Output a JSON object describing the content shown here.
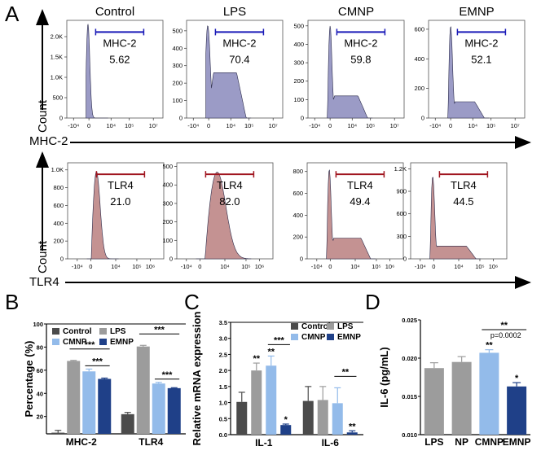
{
  "panels": {
    "A": "A",
    "B": "B",
    "C": "C",
    "D": "D"
  },
  "colors": {
    "Control": "#4b4b4b",
    "LPS": "#9c9c9c",
    "CMNP": "#93bbea",
    "EMNP": "#1f4088",
    "NP": "#9c9c9c",
    "mhc_fill": "#9b9bc6",
    "mhc_gate": "#1a1ab8",
    "tlr_fill": "#c49292",
    "tlr_gate": "#a0141e"
  },
  "chart_data": [
    {
      "type": "histogram",
      "marker": "MHC-2",
      "ylabel": "Count",
      "xlabel": "MHC-2",
      "xticks": [
        "-10⁴",
        "0",
        "10⁴",
        "10⁵",
        "10⁷"
      ],
      "samples": [
        {
          "title": "Control",
          "gate_label": "MHC-2",
          "gate_value": "5.62",
          "yticks": [
            0,
            500,
            1000,
            1500,
            2000
          ],
          "ytick_labels": [
            "0",
            "500",
            "1.0K",
            "1.5K",
            "2.0K"
          ],
          "ymax": 2400,
          "peak": 2300,
          "shoulder": 0
        },
        {
          "title": "LPS",
          "gate_label": "MHC-2",
          "gate_value": "70.4",
          "yticks": [
            0,
            100,
            200,
            300,
            400,
            500
          ],
          "ytick_labels": [
            "0",
            "100",
            "200",
            "300",
            "400",
            "500"
          ],
          "ymax": 560,
          "peak": 530,
          "shoulder": 260
        },
        {
          "title": "CMNP",
          "gate_label": "MHC-2",
          "gate_value": "59.8",
          "yticks": [
            0,
            100,
            200,
            300,
            400,
            500
          ],
          "ytick_labels": [
            "0",
            "100",
            "200",
            "300",
            "400",
            "500"
          ],
          "ymax": 530,
          "peak": 500,
          "shoulder": 120
        },
        {
          "title": "EMNP",
          "gate_label": "MHC-2",
          "gate_value": "52.1",
          "yticks": [
            0,
            200,
            400,
            600
          ],
          "ytick_labels": [
            "0",
            "200",
            "400",
            "600"
          ],
          "ymax": 660,
          "peak": 620,
          "shoulder": 110
        }
      ]
    },
    {
      "type": "histogram",
      "marker": "TLR4",
      "ylabel": "Count",
      "xlabel": "TLR4",
      "xticks": [
        "-10⁴",
        "0",
        "10⁴",
        "10⁵",
        "10⁶"
      ],
      "samples": [
        {
          "title": "Control",
          "gate_label": "TLR4",
          "gate_value": "21.0",
          "yticks": [
            0,
            200,
            400,
            600,
            800,
            1000
          ],
          "ytick_labels": [
            "0",
            "200",
            "400",
            "600",
            "800",
            "1.0K"
          ],
          "ymax": 1080,
          "peak": 980,
          "shoulder": 0
        },
        {
          "title": "LPS",
          "gate_label": "TLR4",
          "gate_value": "82.0",
          "yticks": [
            0,
            100,
            200,
            300,
            400,
            500
          ],
          "ytick_labels": [
            "0",
            "100",
            "200",
            "300",
            "400",
            "500"
          ],
          "ymax": 520,
          "peak": 470,
          "shoulder": 0
        },
        {
          "title": "CMNP",
          "gate_label": "TLR4",
          "gate_value": "49.4",
          "yticks": [
            0,
            200,
            400,
            600,
            800
          ],
          "ytick_labels": [
            "0",
            "200",
            "400",
            "600",
            "800"
          ],
          "ymax": 880,
          "peak": 820,
          "shoulder": 190
        },
        {
          "title": "EMNP",
          "gate_label": "TLR4",
          "gate_value": "44.5",
          "yticks": [
            0,
            300,
            600,
            900,
            1200
          ],
          "ytick_labels": [
            "0",
            "300",
            "600",
            "900",
            "1.2K"
          ],
          "ymax": 1280,
          "peak": 1100,
          "shoulder": 170
        }
      ]
    },
    {
      "type": "bar",
      "panel": "B",
      "ylabel": "Percentage (%)",
      "ylim": [
        5,
        100
      ],
      "yticks": [
        20,
        40,
        60,
        80,
        100
      ],
      "categories": [
        "MHC-2",
        "TLR4"
      ],
      "legend": [
        "Control",
        "LPS",
        "CMNP",
        "EMNP"
      ],
      "series": [
        {
          "name": "Control",
          "values": [
            6,
            22
          ],
          "errors": [
            2,
            1.5
          ]
        },
        {
          "name": "LPS",
          "values": [
            68,
            80.5
          ],
          "errors": [
            0.5,
            1
          ]
        },
        {
          "name": "CMNP",
          "values": [
            59,
            48.5
          ],
          "errors": [
            2,
            1
          ]
        },
        {
          "name": "EMNP",
          "values": [
            52.5,
            44.5
          ],
          "errors": [
            0.7,
            0.4
          ]
        }
      ],
      "brackets": [
        {
          "category": 0,
          "from": 1,
          "to": 3,
          "label": "***"
        },
        {
          "category": 0,
          "from": 2,
          "to": 3,
          "label": "***"
        },
        {
          "category": 1,
          "from": 1,
          "to": 3,
          "label": "***"
        },
        {
          "category": 1,
          "from": 2,
          "to": 3,
          "label": "***"
        }
      ],
      "stars": []
    },
    {
      "type": "bar",
      "panel": "C",
      "ylabel": "Relative mRNA expression",
      "ylim": [
        0,
        3.5
      ],
      "yticks": [
        0.0,
        0.5,
        1.0,
        1.5,
        2.0,
        2.5,
        3.0,
        3.5
      ],
      "ytick_labels": [
        "0.0",
        "0.5",
        "1.0",
        "1.5",
        "2.0",
        "2.5",
        "3.0",
        "3.5"
      ],
      "categories": [
        "IL-1",
        "IL-6"
      ],
      "legend": [
        "Control",
        "LPS",
        "CMNP",
        "EMNP"
      ],
      "series": [
        {
          "name": "Control",
          "values": [
            1.02,
            1.05
          ],
          "errors": [
            0.3,
            0.45
          ]
        },
        {
          "name": "LPS",
          "values": [
            2.0,
            1.08
          ],
          "errors": [
            0.23,
            0.42
          ]
        },
        {
          "name": "CMNP",
          "values": [
            2.15,
            0.98
          ],
          "errors": [
            0.3,
            0.48
          ]
        },
        {
          "name": "EMNP",
          "values": [
            0.3,
            0.07
          ],
          "errors": [
            0.03,
            0.05
          ]
        }
      ],
      "brackets": [
        {
          "category": 0,
          "from": 2,
          "to": 3,
          "label": "***"
        },
        {
          "category": 1,
          "from": 2,
          "to": 3,
          "label": "**"
        }
      ],
      "stars": [
        {
          "category": 0,
          "series": 1,
          "label": "**"
        },
        {
          "category": 0,
          "series": 2,
          "label": "**"
        },
        {
          "category": 0,
          "series": 3,
          "label": "*"
        },
        {
          "category": 1,
          "series": 3,
          "label": "**"
        }
      ]
    },
    {
      "type": "bar",
      "panel": "D",
      "ylabel": "IL-6 (pg/mL)",
      "ylim": [
        0.01,
        0.025
      ],
      "yticks": [
        0.01,
        0.015,
        0.02,
        0.025
      ],
      "ytick_labels": [
        "0.010",
        "0.015",
        "0.020",
        "0.025"
      ],
      "categories": [
        "LPS",
        "NP",
        "CMNP",
        "EMNP"
      ],
      "values": [
        0.0187,
        0.0195,
        0.0207,
        0.0163
      ],
      "errors": [
        0.0007,
        0.0007,
        0.0004,
        0.0005
      ],
      "stars": [
        {
          "index": 2,
          "label": "**"
        },
        {
          "index": 3,
          "label": "*"
        }
      ],
      "bracket": {
        "from": 2,
        "to": 3,
        "label": "**",
        "note": "p=0.0002"
      }
    }
  ]
}
